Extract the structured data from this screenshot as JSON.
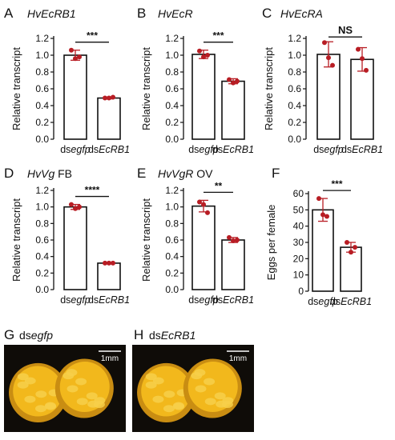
{
  "chart_data": [
    {
      "panel": "A",
      "type": "bar",
      "title": "HvEcRB1",
      "title_parts": [
        {
          "t": "HvEcRB1",
          "i": true
        }
      ],
      "ylabel": "Relative transcript",
      "ylim": [
        0,
        1.2
      ],
      "ytick_step": 0.2,
      "yticks": [
        "0.0",
        "0.2",
        "0.4",
        "0.6",
        "0.8",
        "1.0",
        "1.2"
      ],
      "categories": [
        "dsegfp",
        "dsEcRB1"
      ],
      "category_parts": [
        [
          {
            "t": "ds",
            "i": false
          },
          {
            "t": "egfp",
            "i": true
          }
        ],
        [
          {
            "t": "ds",
            "i": false
          },
          {
            "t": "EcRB1",
            "i": true
          }
        ]
      ],
      "values": [
        1.0,
        0.49
      ],
      "errors": [
        0.06,
        0.01
      ],
      "points": [
        [
          1.06,
          0.96,
          0.98
        ],
        [
          0.49,
          0.49,
          0.5
        ]
      ],
      "significance": "***"
    },
    {
      "panel": "B",
      "type": "bar",
      "title": "HvEcR",
      "title_parts": [
        {
          "t": "HvEcR",
          "i": true
        }
      ],
      "ylabel": "Relative transcript",
      "ylim": [
        0,
        1.2
      ],
      "ytick_step": 0.2,
      "yticks": [
        "0.0",
        "0.2",
        "0.4",
        "0.6",
        "0.8",
        "1.0",
        "1.2"
      ],
      "categories": [
        "dsegfp",
        "dsEcRB1"
      ],
      "category_parts": [
        [
          {
            "t": "ds",
            "i": false
          },
          {
            "t": "egfp",
            "i": true
          }
        ],
        [
          {
            "t": "ds",
            "i": false
          },
          {
            "t": "EcRB1",
            "i": true
          }
        ]
      ],
      "values": [
        1.01,
        0.69
      ],
      "errors": [
        0.05,
        0.03
      ],
      "points": [
        [
          1.05,
          0.98,
          1.0
        ],
        [
          0.71,
          0.67,
          0.69
        ]
      ],
      "significance": "***"
    },
    {
      "panel": "C",
      "type": "bar",
      "title": "HvEcRA",
      "title_parts": [
        {
          "t": "HvEcRA",
          "i": true
        }
      ],
      "ylabel": "Relative transcript",
      "ylim": [
        0,
        1.2
      ],
      "ytick_step": 0.2,
      "yticks": [
        "0.0",
        "0.2",
        "0.4",
        "0.6",
        "0.8",
        "1.0",
        "1.2"
      ],
      "categories": [
        "dsegfp",
        "dsEcRB1"
      ],
      "category_parts": [
        [
          {
            "t": "ds",
            "i": false
          },
          {
            "t": "egfp",
            "i": true
          }
        ],
        [
          {
            "t": "ds",
            "i": false
          },
          {
            "t": "EcRB1",
            "i": true
          }
        ]
      ],
      "values": [
        1.01,
        0.95
      ],
      "errors": [
        0.15,
        0.14
      ],
      "points": [
        [
          1.15,
          0.97,
          0.88
        ],
        [
          1.07,
          0.96,
          0.82
        ]
      ],
      "significance": "NS"
    },
    {
      "panel": "D",
      "type": "bar",
      "title": "HvVg FB",
      "title_parts": [
        {
          "t": "HvVg",
          "i": true
        },
        {
          "t": " FB",
          "i": false
        }
      ],
      "ylabel": "Relative transcript",
      "ylim": [
        0,
        1.2
      ],
      "ytick_step": 0.2,
      "yticks": [
        "0.0",
        "0.2",
        "0.4",
        "0.6",
        "0.8",
        "1.0",
        "1.2"
      ],
      "categories": [
        "dsegfp",
        "dsEcRB1"
      ],
      "category_parts": [
        [
          {
            "t": "ds",
            "i": false
          },
          {
            "t": "egfp",
            "i": true
          }
        ],
        [
          {
            "t": "ds",
            "i": false
          },
          {
            "t": "EcRB1",
            "i": true
          }
        ]
      ],
      "values": [
        1.0,
        0.32
      ],
      "errors": [
        0.03,
        0.01
      ],
      "points": [
        [
          1.03,
          0.98,
          1.0
        ],
        [
          0.32,
          0.32,
          0.32
        ]
      ],
      "significance": "****"
    },
    {
      "panel": "E",
      "type": "bar",
      "title": "HvVgR OV",
      "title_parts": [
        {
          "t": "HvVgR",
          "i": true
        },
        {
          "t": " OV",
          "i": false
        }
      ],
      "ylabel": "Relative transcript",
      "ylim": [
        0,
        1.2
      ],
      "ytick_step": 0.2,
      "yticks": [
        "0.0",
        "0.2",
        "0.4",
        "0.6",
        "0.8",
        "1.0",
        "1.2"
      ],
      "categories": [
        "dsegfp",
        "dsEcRB1"
      ],
      "category_parts": [
        [
          {
            "t": "ds",
            "i": false
          },
          {
            "t": "egfp",
            "i": true
          }
        ],
        [
          {
            "t": "ds",
            "i": false
          },
          {
            "t": "EcRB1",
            "i": true
          }
        ]
      ],
      "values": [
        1.01,
        0.6
      ],
      "errors": [
        0.07,
        0.03
      ],
      "points": [
        [
          1.06,
          1.03,
          0.93
        ],
        [
          0.63,
          0.59,
          0.6
        ]
      ],
      "significance": "**"
    },
    {
      "panel": "F",
      "type": "bar",
      "title": "",
      "title_parts": [],
      "ylabel": "Eggs per female",
      "ylim": [
        0,
        60
      ],
      "ytick_step": 10,
      "yticks": [
        "0",
        "10",
        "20",
        "30",
        "40",
        "50",
        "60"
      ],
      "categories": [
        "dsegfp",
        "dsEcRB1"
      ],
      "category_parts": [
        [
          {
            "t": "ds",
            "i": false
          },
          {
            "t": "egfp",
            "i": true
          }
        ],
        [
          {
            "t": "ds",
            "i": false
          },
          {
            "t": "EcRB1",
            "i": true
          }
        ]
      ],
      "values": [
        50,
        27
      ],
      "errors": [
        7,
        3
      ],
      "points": [
        [
          57,
          47,
          46
        ],
        [
          30,
          24,
          27
        ]
      ],
      "significance": "***"
    }
  ],
  "photos": [
    {
      "panel": "G",
      "title_parts": [
        {
          "t": "ds",
          "i": false
        },
        {
          "t": "egfp",
          "i": true
        }
      ],
      "scale_bar": "1mm"
    },
    {
      "panel": "H",
      "title_parts": [
        {
          "t": "ds",
          "i": false
        },
        {
          "t": "EcRB1",
          "i": true
        }
      ],
      "scale_bar": "1mm"
    }
  ],
  "colors": {
    "bar_fill": "#ffffff",
    "bar_edge": "#111111",
    "points": "#b81d24",
    "error_bars": "#b81d24",
    "axis": "#111111",
    "photo_background": "#0f0c08",
    "ovary": "#f2b81c"
  }
}
